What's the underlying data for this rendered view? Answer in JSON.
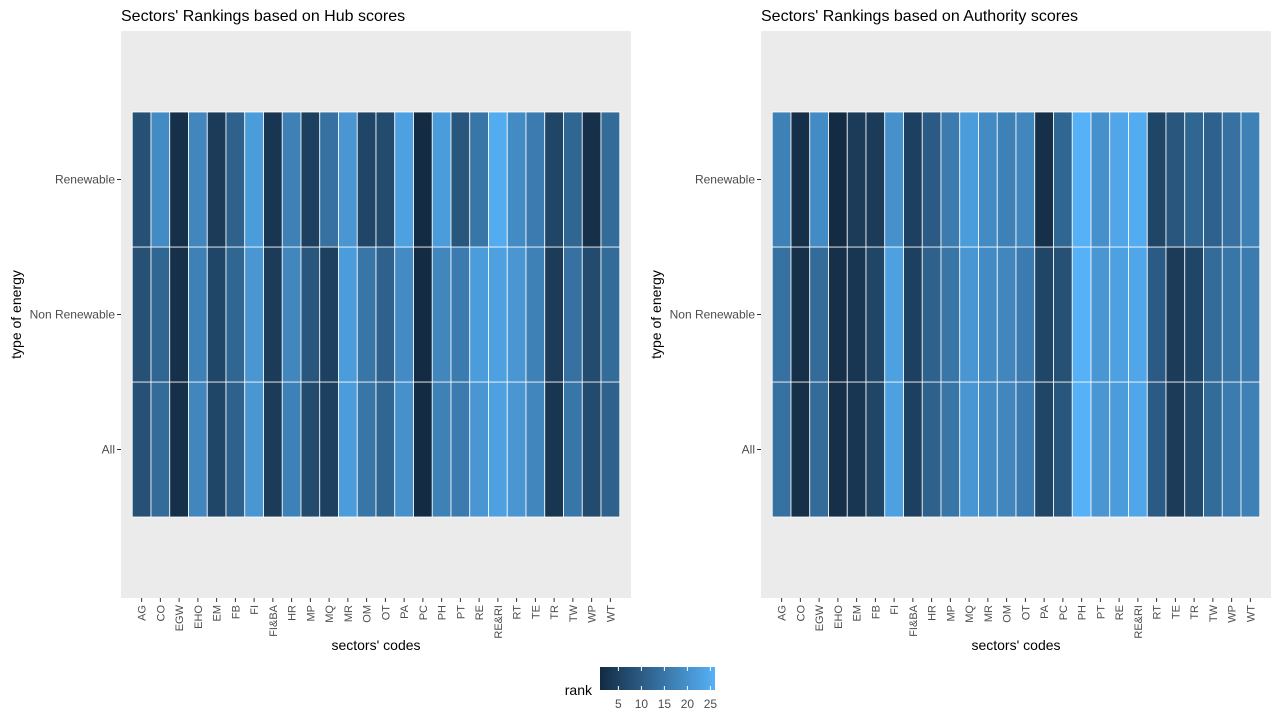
{
  "chart_data": [
    {
      "type": "heatmap",
      "title": "Sectors' Rankings based on Hub scores",
      "xlabel": "sectors' codes",
      "ylabel": "type of energy",
      "x_categories": [
        "AG",
        "CO",
        "EGW",
        "EHO",
        "EM",
        "FB",
        "FI",
        "FI&BA",
        "HR",
        "MP",
        "MQ",
        "MR",
        "OM",
        "OT",
        "PA",
        "PC",
        "PH",
        "PT",
        "RE",
        "RE&RI",
        "RT",
        "TE",
        "TR",
        "TW",
        "WP",
        "WT"
      ],
      "y_categories": [
        "All",
        "Non Renewable",
        "Renewable"
      ],
      "values": {
        "Renewable": [
          8,
          19,
          2,
          18,
          4,
          11,
          22,
          3,
          17,
          5,
          14,
          21,
          6,
          7,
          23,
          1,
          22,
          9,
          15,
          25,
          19,
          16,
          6,
          12,
          2,
          13
        ],
        "Non Renewable": [
          8,
          12,
          2,
          17,
          6,
          12,
          21,
          4,
          18,
          9,
          5,
          22,
          15,
          11,
          19,
          1,
          18,
          16,
          22,
          23,
          21,
          17,
          4,
          14,
          7,
          13
        ],
        "All": [
          8,
          13,
          2,
          18,
          6,
          11,
          21,
          4,
          17,
          7,
          5,
          22,
          15,
          12,
          20,
          1,
          17,
          16,
          21,
          23,
          21,
          18,
          3,
          15,
          7,
          11
        ]
      }
    },
    {
      "type": "heatmap",
      "title": "Sectors' Rankings based on Authority scores",
      "xlabel": "sectors' codes",
      "ylabel": "type of energy",
      "x_categories": [
        "AG",
        "CO",
        "EGW",
        "EHO",
        "EM",
        "FB",
        "FI",
        "FI&BA",
        "HR",
        "MP",
        "MQ",
        "MR",
        "OM",
        "OT",
        "PA",
        "PC",
        "PH",
        "PT",
        "RE",
        "RE&RI",
        "RT",
        "TE",
        "TR",
        "TW",
        "WP",
        "WT"
      ],
      "y_categories": [
        "All",
        "Non Renewable",
        "Renewable"
      ],
      "values": {
        "Renewable": [
          17,
          2,
          19,
          1,
          4,
          4,
          20,
          5,
          10,
          16,
          22,
          19,
          17,
          18,
          2,
          12,
          26,
          20,
          24,
          25,
          6,
          9,
          12,
          11,
          14,
          17
        ],
        "Non Renewable": [
          14,
          2,
          13,
          2,
          3,
          6,
          23,
          5,
          11,
          15,
          21,
          19,
          18,
          16,
          6,
          8,
          26,
          21,
          23,
          24,
          10,
          4,
          6,
          13,
          15,
          16
        ],
        "All": [
          14,
          2,
          13,
          2,
          3,
          6,
          23,
          5,
          11,
          15,
          21,
          19,
          18,
          16,
          6,
          9,
          26,
          21,
          22,
          24,
          10,
          4,
          7,
          13,
          16,
          17
        ]
      }
    }
  ],
  "legend": {
    "title": "rank",
    "ticks": [
      5,
      10,
      15,
      20,
      25
    ],
    "range": [
      1,
      26
    ],
    "low_color": "#132B43",
    "high_color": "#56B1F7"
  }
}
